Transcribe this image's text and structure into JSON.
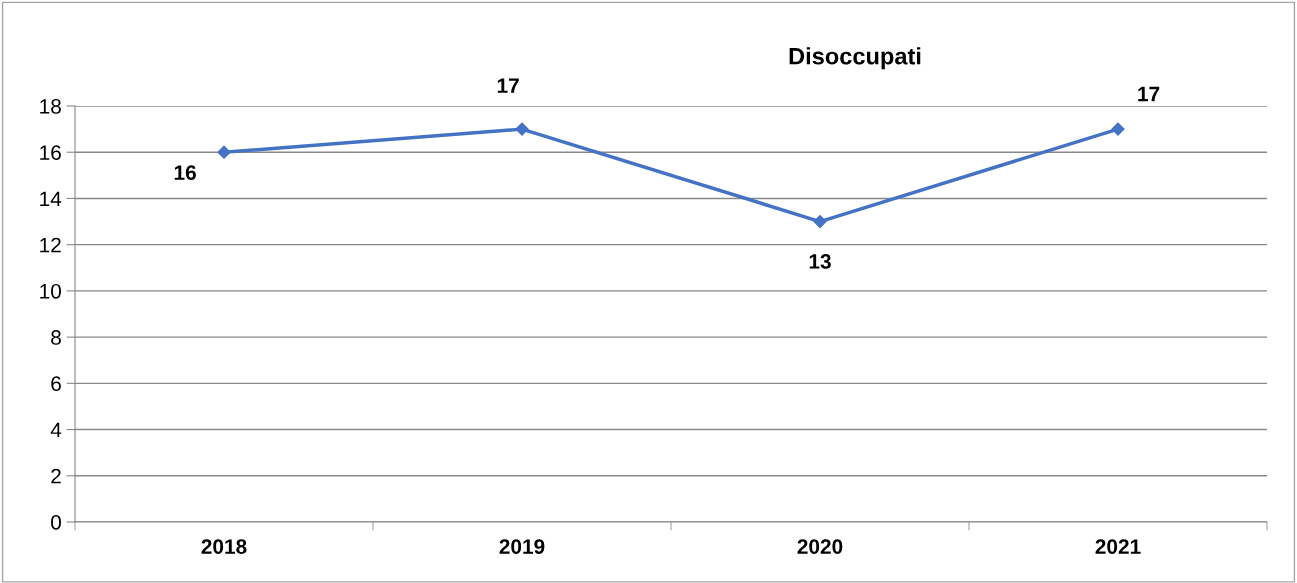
{
  "chart_data": {
    "type": "line",
    "title": "Disoccupati",
    "categories": [
      "2018",
      "2019",
      "2020",
      "2021"
    ],
    "series": [
      {
        "color": "#4472c4",
        "values": [
          16,
          17,
          13,
          17
        ]
      }
    ],
    "ylim": [
      0,
      18
    ],
    "yticks": [
      0,
      2,
      4,
      6,
      8,
      10,
      12,
      14,
      16,
      18
    ],
    "grid": "y",
    "marker": "diamond",
    "line_style": "solid",
    "data_labels": true
  }
}
